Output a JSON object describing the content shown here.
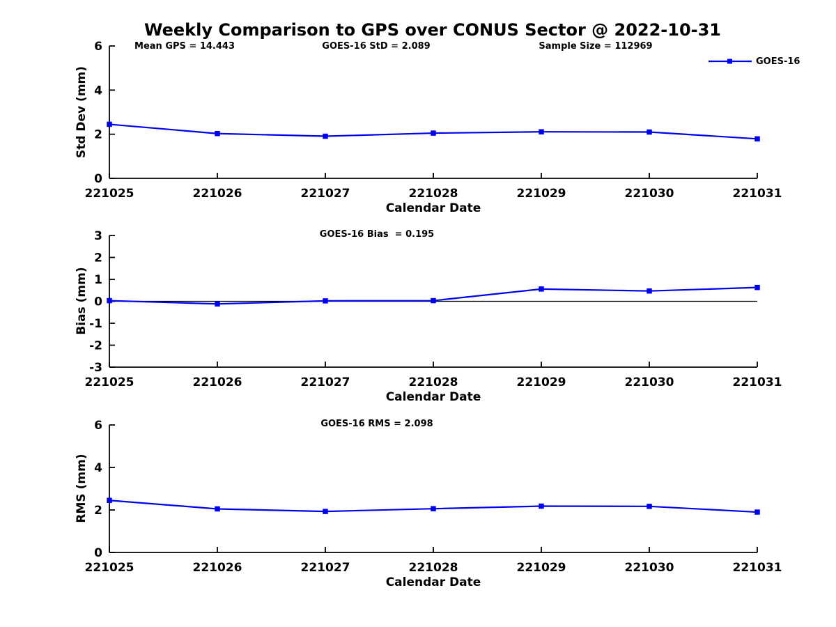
{
  "figure": {
    "title": "Weekly Comparison to GPS over CONUS Sector @ 2022-10-31",
    "stats": [
      {
        "id": "mean_gps",
        "text": "Mean GPS = 14.443"
      },
      {
        "id": "goes16_std",
        "text": "GOES-16 StD = 2.089"
      },
      {
        "id": "sample_size",
        "text": "Sample Size = 112969"
      }
    ],
    "legend": {
      "label": "GOES-16"
    }
  },
  "colors": {
    "line": "#0000f0",
    "axis": "#000000",
    "zero_line": "#000000",
    "text": "#000000",
    "background": "#ffffff"
  },
  "chart_data": [
    {
      "type": "line",
      "subplot": "std_dev",
      "series_name": "GOES-16",
      "x": [
        "221025",
        "221026",
        "221027",
        "221028",
        "221029",
        "221030",
        "221031"
      ],
      "values": [
        2.45,
        2.03,
        1.91,
        2.05,
        2.11,
        2.1,
        1.79
      ],
      "ylabel": "Std Dev (mm)",
      "xlabel": "Calendar Date",
      "ylim": [
        0,
        6
      ],
      "yticks": [
        0,
        2,
        4,
        6
      ],
      "annotation": "",
      "zero_line": false,
      "legend_position": "top-right",
      "grid": false,
      "marker": "square"
    },
    {
      "type": "line",
      "subplot": "bias",
      "series_name": "GOES-16",
      "x": [
        "221025",
        "221026",
        "221027",
        "221028",
        "221029",
        "221030",
        "221031"
      ],
      "values": [
        0.03,
        -0.12,
        0.02,
        0.03,
        0.56,
        0.47,
        0.63
      ],
      "ylabel": "Bias (mm)",
      "xlabel": "Calendar Date",
      "ylim": [
        -3,
        3
      ],
      "yticks": [
        3,
        2,
        1,
        0,
        -1,
        -2,
        -3
      ],
      "annotation": "GOES-16 Bias  = 0.195",
      "zero_line": true,
      "grid": false,
      "marker": "square"
    },
    {
      "type": "line",
      "subplot": "rms",
      "series_name": "GOES-16",
      "x": [
        "221025",
        "221026",
        "221027",
        "221028",
        "221029",
        "221030",
        "221031"
      ],
      "values": [
        2.45,
        2.05,
        1.93,
        2.06,
        2.18,
        2.17,
        1.9
      ],
      "ylabel": "RMS (mm)",
      "xlabel": "Calendar Date",
      "ylim": [
        0,
        6
      ],
      "yticks": [
        0,
        2,
        4,
        6
      ],
      "annotation": "GOES-16 RMS = 2.098",
      "zero_line": false,
      "grid": false,
      "marker": "square"
    }
  ]
}
